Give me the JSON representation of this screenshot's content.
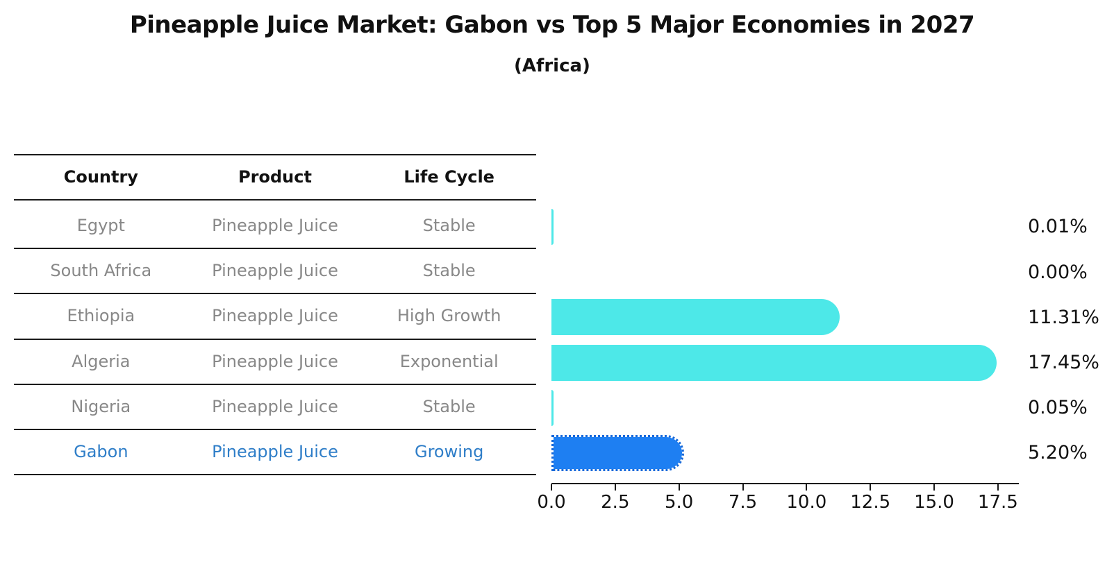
{
  "title": "Pineapple Juice Market: Gabon vs Top 5 Major Economies in 2027",
  "subtitle": "(Africa)",
  "table": {
    "headers": [
      "Country",
      "Product",
      "Life Cycle"
    ],
    "rows": [
      {
        "country": "Egypt",
        "product": "Pineapple Juice",
        "life_cycle": "Stable",
        "highlight": false
      },
      {
        "country": "South Africa",
        "product": "Pineapple Juice",
        "life_cycle": "Stable",
        "highlight": false
      },
      {
        "country": "Ethiopia",
        "product": "Pineapple Juice",
        "life_cycle": "High Growth",
        "highlight": false
      },
      {
        "country": "Algeria",
        "product": "Pineapple Juice",
        "life_cycle": "Exponential",
        "highlight": false
      },
      {
        "country": "Nigeria",
        "product": "Pineapple Juice",
        "life_cycle": "Stable",
        "highlight": false
      },
      {
        "country": "Gabon",
        "product": "Pineapple Juice",
        "life_cycle": "Growing",
        "highlight": true
      }
    ]
  },
  "chart_data": {
    "type": "bar",
    "orientation": "horizontal",
    "title": "Pineapple Juice Market: Gabon vs Top 5 Major Economies in 2027",
    "subtitle": "(Africa)",
    "categories": [
      "Egypt",
      "South Africa",
      "Ethiopia",
      "Algeria",
      "Nigeria",
      "Gabon"
    ],
    "values": [
      0.01,
      0.0,
      11.31,
      17.45,
      0.05,
      5.2
    ],
    "value_labels": [
      "0.01%",
      "0.00%",
      "11.31%",
      "17.45%",
      "0.05%",
      "5.20%"
    ],
    "highlight_index": 5,
    "xlim": [
      0,
      18.32
    ],
    "x_ticks": [
      0.0,
      2.5,
      5.0,
      7.5,
      10.0,
      12.5,
      15.0,
      17.5
    ],
    "x_tick_labels": [
      "0.0",
      "2.5",
      "5.0",
      "7.5",
      "10.0",
      "12.5",
      "15.0",
      "17.5"
    ],
    "grid": false,
    "legend": false,
    "colors": {
      "bar_default": "#4DE8E8",
      "bar_highlight": "#1E7FF2",
      "bar_highlight_edge": "#1668D9",
      "text_highlight": "#2F7EC8",
      "text_muted": "#888888",
      "text_primary": "#111111"
    }
  }
}
